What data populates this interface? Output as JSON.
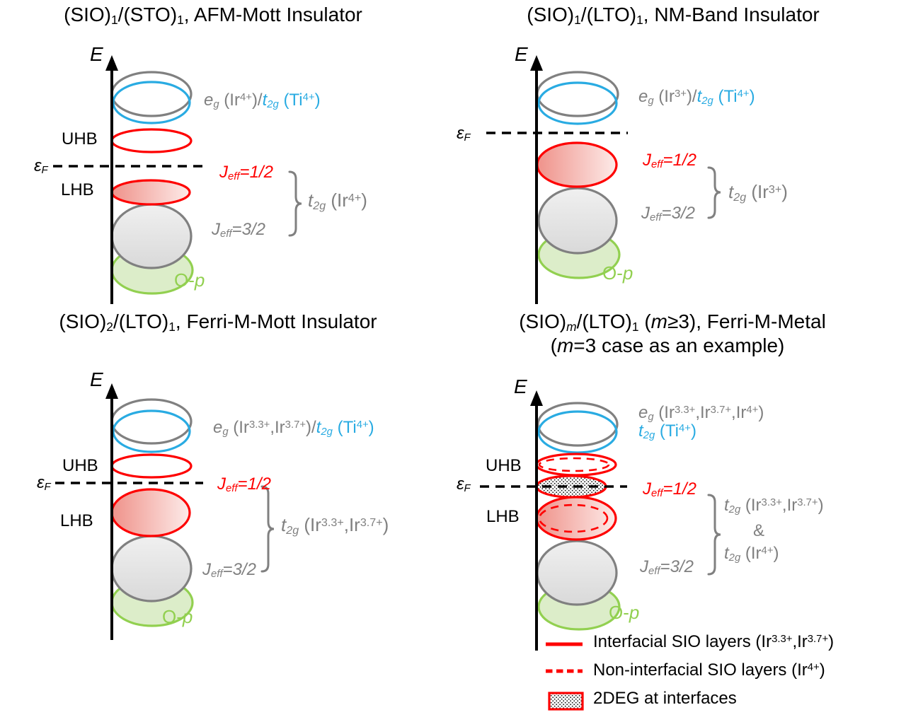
{
  "colors": {
    "red": "#fe0000",
    "blue": "#29abe2",
    "gray": "#808080",
    "green": "#92d050",
    "black": "#000000",
    "pink_fill_start": "#ef928a",
    "pink_fill_end": "#fdebe9",
    "gray_fill": "#e6e6e6",
    "green_fill": "#dcedc9"
  },
  "panels": [
    {
      "title": "(SIO)_{1}/(STO)_{1}, AFM-Mott Insulator",
      "energy_axis_label": "*{E}",
      "fermi_label": "*{ε_{F}}",
      "uhb_label": "UHB",
      "lhb_label": "LHB",
      "eg_label_gray": "*{e_{g}} (Ir^{4+})/",
      "eg_label_blue": "*{t_{2g}} (Ti^{4+})",
      "jeff_half_label": "*{J_{eff}=1/2}",
      "jeff_three_half_label": "*{J_{eff}=3/2}",
      "t2g_bracket_label": "*{t_{2g}} (Ir^{4+})",
      "op_label": "O-*{p}"
    },
    {
      "title": "(SIO)_{1}/(LTO)_{1}, NM-Band Insulator",
      "energy_axis_label": "*{E}",
      "fermi_label": "*{ε_{F}}",
      "eg_label_gray": "*{e_{g}} (Ir^{3+})/",
      "eg_label_blue": "*{t_{2g}} (Ti^{4+})",
      "jeff_half_label": "*{J_{eff}=1/2}",
      "jeff_three_half_label": "*{J_{eff}=3/2}",
      "t2g_bracket_label": "*{t_{2g}} (Ir^{3+})",
      "op_label": "O-*{p}"
    },
    {
      "title": "(SIO)_{2}/(LTO)_{1}, Ferri-M-Mott Insulator",
      "energy_axis_label": "*{E}",
      "fermi_label": "*{ε_{F}}",
      "uhb_label": "UHB",
      "lhb_label": "LHB",
      "eg_label_gray": "*{e_{g}} (Ir^{3.3+},Ir^{3.7+})/",
      "eg_label_blue": "*{t_{2g}} (Ti^{4+})",
      "jeff_half_label": "*{J_{eff}=1/2}",
      "jeff_three_half_label": "*{J_{eff}=3/2}",
      "t2g_bracket_label": "*{t_{2g}} (Ir^{3.3+},Ir^{3.7+})",
      "op_label": "O-*{p}"
    },
    {
      "title": "(SIO)_{*{m}}/(LTO)_{1} (*{m}≥3), Ferri-M-Metal",
      "subtitle": "(*{m}=3 case as an example)",
      "energy_axis_label": "*{E}",
      "fermi_label": "*{ε_{F}}",
      "uhb_label": "UHB",
      "lhb_label": "LHB",
      "eg_label_gray": "*{e_{g}} (Ir^{3.3+},Ir^{3.7+},Ir^{4+})",
      "eg_label_blue": "*{t_{2g}} (Ti^{4+})",
      "jeff_half_label": "*{J_{eff}=1/2}",
      "jeff_three_half_label": "*{J_{eff}=3/2}",
      "t2g_bracket_label_top": "*{t_{2g}} (Ir^{3.3+},Ir^{3.7+})",
      "t2g_bracket_amp": "&",
      "t2g_bracket_label_bottom": "*{t_{2g}} (Ir^{4+})",
      "op_label": "O-*{p}"
    }
  ],
  "legend": {
    "items": [
      {
        "swatch": "red-solid-line",
        "label": "Interfacial SIO layers (Ir^{3.3+},Ir^{3.7+})"
      },
      {
        "swatch": "red-dashed-line",
        "label": "Non-interfacial SIO layers (Ir^{4+})"
      },
      {
        "swatch": "red-hatched-box",
        "label": "2DEG at interfaces"
      }
    ]
  }
}
